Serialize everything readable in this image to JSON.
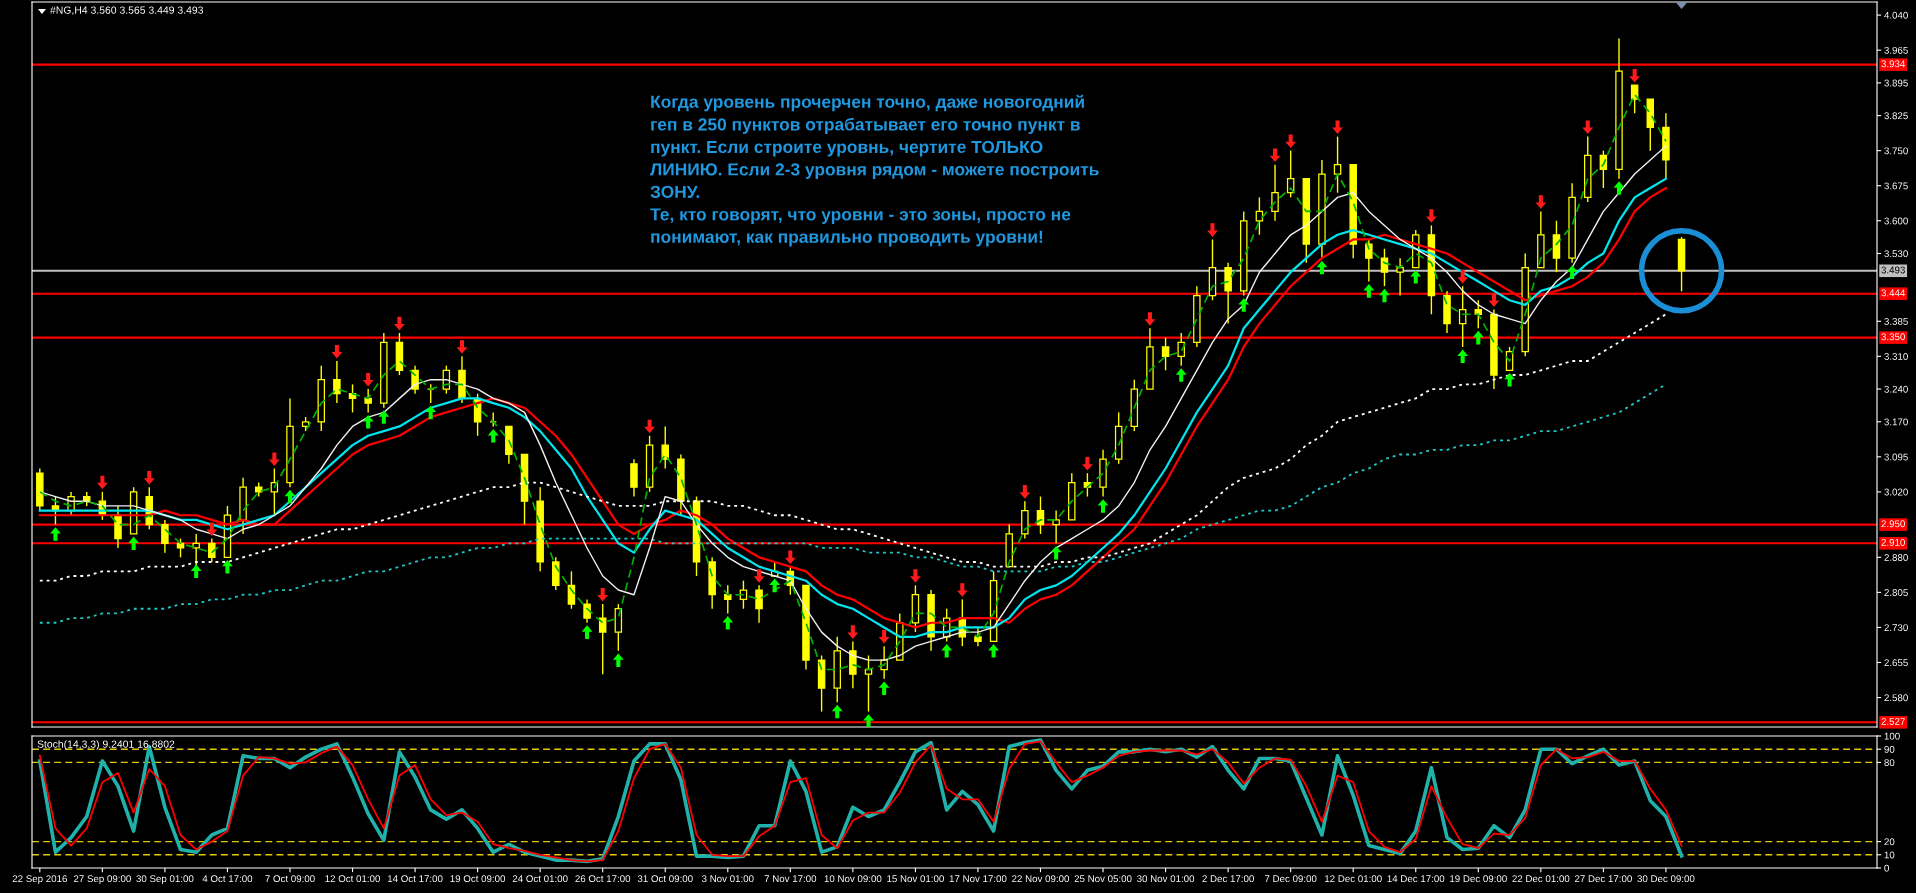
{
  "chart_data": [
    {
      "type": "candlestick",
      "title": "#NG,H4 3.560 3.565 3.449 3.493",
      "color": "#ffff00",
      "categories": [
        null,
        null,
        null,
        null,
        null,
        null,
        null,
        null,
        null,
        null,
        null,
        null,
        null,
        null,
        null,
        null,
        null,
        null,
        null,
        null,
        null,
        null,
        null,
        null,
        null,
        null,
        null,
        null,
        null,
        null,
        null,
        null,
        null,
        null,
        null,
        null,
        null,
        null,
        null,
        null,
        null,
        null,
        null,
        null,
        null,
        null,
        null,
        null,
        null,
        null,
        null,
        null,
        null,
        null,
        null,
        null,
        null,
        null,
        null,
        null,
        null,
        null,
        null,
        null,
        null,
        null,
        null,
        null,
        null,
        null,
        null,
        null,
        null,
        null,
        null,
        null,
        null,
        null,
        null,
        null,
        null,
        null,
        null,
        null,
        null,
        null,
        null,
        null,
        null,
        null,
        null,
        null,
        null,
        null,
        null,
        null,
        null,
        null,
        null,
        null,
        null,
        null,
        null,
        null,
        null,
        null
      ],
      "ohlc": [
        [
          3.06,
          3.07,
          2.98,
          2.99
        ],
        [
          2.99,
          3.01,
          2.95,
          2.98
        ],
        [
          2.98,
          3.02,
          2.97,
          3.01
        ],
        [
          3.01,
          3.02,
          2.99,
          3.0
        ],
        [
          3.0,
          3.02,
          2.96,
          2.97
        ],
        [
          2.97,
          2.99,
          2.9,
          2.92
        ],
        [
          2.93,
          3.03,
          2.93,
          3.02
        ],
        [
          3.01,
          3.03,
          2.94,
          2.95
        ],
        [
          2.95,
          2.96,
          2.89,
          2.91
        ],
        [
          2.91,
          2.92,
          2.88,
          2.9
        ],
        [
          2.9,
          2.93,
          2.86,
          2.91
        ],
        [
          2.91,
          2.92,
          2.87,
          2.88
        ],
        [
          2.88,
          2.99,
          2.88,
          2.97
        ],
        [
          2.96,
          3.05,
          2.93,
          3.03
        ],
        [
          3.03,
          3.04,
          3.01,
          3.02
        ],
        [
          3.02,
          3.07,
          2.97,
          3.04
        ],
        [
          3.04,
          3.22,
          3.03,
          3.16
        ],
        [
          3.16,
          3.18,
          3.15,
          3.17
        ],
        [
          3.17,
          3.29,
          3.15,
          3.26
        ],
        [
          3.26,
          3.3,
          3.21,
          3.23
        ],
        [
          3.23,
          3.25,
          3.19,
          3.22
        ],
        [
          3.22,
          3.24,
          3.19,
          3.21
        ],
        [
          3.21,
          3.36,
          3.2,
          3.34
        ],
        [
          3.34,
          3.36,
          3.27,
          3.28
        ],
        [
          3.28,
          3.29,
          3.23,
          3.24
        ],
        [
          3.24,
          3.25,
          3.21,
          3.24
        ],
        [
          3.24,
          3.29,
          3.23,
          3.28
        ],
        [
          3.28,
          3.31,
          3.21,
          3.22
        ],
        [
          3.22,
          3.23,
          3.14,
          3.17
        ],
        [
          3.17,
          3.19,
          3.16,
          3.17
        ],
        [
          3.16,
          3.16,
          3.08,
          3.1
        ],
        [
          3.1,
          3.1,
          2.95,
          3.0
        ],
        [
          3.0,
          3.03,
          2.85,
          2.87
        ],
        [
          2.87,
          2.88,
          2.81,
          2.82
        ],
        [
          2.82,
          2.85,
          2.77,
          2.78
        ],
        [
          2.78,
          2.79,
          2.74,
          2.75
        ],
        [
          2.75,
          2.78,
          2.63,
          2.72
        ],
        [
          2.72,
          2.78,
          2.68,
          2.77
        ],
        [
          3.08,
          3.09,
          3.01,
          3.03
        ],
        [
          3.03,
          3.14,
          3.02,
          3.12
        ],
        [
          3.12,
          3.16,
          3.07,
          3.09
        ],
        [
          3.09,
          3.1,
          2.97,
          3.0
        ],
        [
          3.0,
          3.01,
          2.84,
          2.87
        ],
        [
          2.87,
          2.88,
          2.77,
          2.8
        ],
        [
          2.8,
          2.82,
          2.76,
          2.79
        ],
        [
          2.79,
          2.83,
          2.77,
          2.81
        ],
        [
          2.81,
          2.82,
          2.74,
          2.77
        ],
        [
          2.84,
          2.87,
          2.84,
          2.85
        ],
        [
          2.85,
          2.86,
          2.8,
          2.82
        ],
        [
          2.82,
          2.82,
          2.64,
          2.66
        ],
        [
          2.66,
          2.67,
          2.55,
          2.6
        ],
        [
          2.6,
          2.71,
          2.57,
          2.68
        ],
        [
          2.68,
          2.7,
          2.6,
          2.63
        ],
        [
          2.63,
          2.67,
          2.55,
          2.64
        ],
        [
          2.64,
          2.69,
          2.62,
          2.66
        ],
        [
          2.66,
          2.76,
          2.66,
          2.74
        ],
        [
          2.74,
          2.82,
          2.72,
          2.8
        ],
        [
          2.8,
          2.81,
          2.68,
          2.71
        ],
        [
          2.71,
          2.77,
          2.7,
          2.75
        ],
        [
          2.75,
          2.79,
          2.69,
          2.71
        ],
        [
          2.71,
          2.73,
          2.69,
          2.7
        ],
        [
          2.7,
          2.85,
          2.7,
          2.83
        ],
        [
          2.86,
          2.95,
          2.86,
          2.93
        ],
        [
          2.93,
          3.0,
          2.92,
          2.98
        ],
        [
          2.98,
          3.01,
          2.93,
          2.95
        ],
        [
          2.95,
          2.98,
          2.91,
          2.96
        ],
        [
          2.96,
          3.06,
          2.96,
          3.04
        ],
        [
          3.04,
          3.06,
          3.01,
          3.03
        ],
        [
          3.03,
          3.11,
          3.01,
          3.09
        ],
        [
          3.09,
          3.19,
          3.08,
          3.16
        ],
        [
          3.16,
          3.26,
          3.15,
          3.24
        ],
        [
          3.24,
          3.37,
          3.24,
          3.33
        ],
        [
          3.33,
          3.35,
          3.28,
          3.31
        ],
        [
          3.31,
          3.36,
          3.29,
          3.34
        ],
        [
          3.34,
          3.46,
          3.33,
          3.44
        ],
        [
          3.44,
          3.56,
          3.43,
          3.5
        ],
        [
          3.5,
          3.51,
          3.38,
          3.45
        ],
        [
          3.45,
          3.62,
          3.44,
          3.6
        ],
        [
          3.6,
          3.65,
          3.57,
          3.62
        ],
        [
          3.62,
          3.72,
          3.6,
          3.66
        ],
        [
          3.66,
          3.75,
          3.65,
          3.69
        ],
        [
          3.69,
          3.69,
          3.51,
          3.55
        ],
        [
          3.55,
          3.73,
          3.52,
          3.7
        ],
        [
          3.7,
          3.78,
          3.66,
          3.72
        ],
        [
          3.72,
          3.72,
          3.52,
          3.55
        ],
        [
          3.55,
          3.56,
          3.47,
          3.52
        ],
        [
          3.52,
          3.54,
          3.46,
          3.49
        ],
        [
          3.49,
          3.52,
          3.44,
          3.5
        ],
        [
          3.5,
          3.58,
          3.5,
          3.57
        ],
        [
          3.57,
          3.59,
          3.4,
          3.44
        ],
        [
          3.44,
          3.45,
          3.36,
          3.38
        ],
        [
          3.38,
          3.46,
          3.33,
          3.41
        ],
        [
          3.41,
          3.43,
          3.37,
          3.4
        ],
        [
          3.4,
          3.41,
          3.24,
          3.27
        ],
        [
          3.28,
          3.33,
          3.28,
          3.32
        ],
        [
          3.32,
          3.53,
          3.31,
          3.5
        ],
        [
          3.5,
          3.62,
          3.5,
          3.57
        ],
        [
          3.57,
          3.6,
          3.49,
          3.52
        ],
        [
          3.52,
          3.68,
          3.51,
          3.65
        ],
        [
          3.65,
          3.78,
          3.64,
          3.74
        ],
        [
          3.74,
          3.75,
          3.67,
          3.71
        ],
        [
          3.71,
          3.99,
          3.69,
          3.92
        ],
        [
          3.89,
          3.89,
          3.83,
          3.86
        ],
        [
          3.86,
          3.86,
          3.75,
          3.8
        ],
        [
          3.8,
          3.83,
          3.69,
          3.73
        ],
        [
          3.56,
          3.565,
          3.449,
          3.493
        ]
      ],
      "series": [
        {
          "type": "line",
          "color": "#ff0000",
          "values": [
            2.97,
            2.97,
            2.97,
            2.97,
            2.97,
            2.97,
            2.97,
            2.97,
            2.98,
            2.97,
            2.97,
            2.96,
            2.95,
            2.96,
            2.95,
            2.95,
            2.98,
            3.01,
            3.04,
            3.07,
            3.1,
            3.12,
            3.13,
            3.14,
            3.16,
            3.18,
            3.19,
            3.2,
            3.21,
            3.22,
            3.21,
            3.2,
            3.17,
            3.14,
            3.1,
            3.05,
            3.0,
            2.95,
            2.93,
            2.95,
            2.96,
            2.98,
            2.97,
            2.95,
            2.92,
            2.9,
            2.88,
            2.87,
            2.86,
            2.85,
            2.82,
            2.8,
            2.79,
            2.77,
            2.75,
            2.74,
            2.73,
            2.74,
            2.74,
            2.75,
            2.75,
            2.75,
            2.74,
            2.77,
            2.79,
            2.8,
            2.82,
            2.85,
            2.88,
            2.91,
            2.94,
            2.99,
            3.04,
            3.1,
            3.16,
            3.21,
            3.26,
            3.33,
            3.38,
            3.42,
            3.46,
            3.49,
            3.52,
            3.54,
            3.56,
            3.56,
            3.57,
            3.56,
            3.55,
            3.54,
            3.53,
            3.51,
            3.49,
            3.47,
            3.45,
            3.43,
            3.44,
            3.45,
            3.46,
            3.48,
            3.51,
            3.56,
            3.62,
            3.65,
            3.67,
            null
          ]
        },
        {
          "type": "line",
          "color": "#00e5ee",
          "values": [
            2.98,
            2.98,
            2.98,
            2.98,
            2.98,
            2.98,
            2.98,
            2.98,
            2.97,
            2.96,
            2.96,
            2.95,
            2.94,
            2.95,
            2.96,
            2.97,
            3.0,
            3.03,
            3.06,
            3.09,
            3.12,
            3.14,
            3.15,
            3.16,
            3.18,
            3.2,
            3.21,
            3.22,
            3.22,
            3.21,
            3.2,
            3.18,
            3.15,
            3.11,
            3.07,
            3.01,
            2.96,
            2.91,
            2.89,
            2.94,
            2.98,
            2.97,
            2.96,
            2.93,
            2.9,
            2.88,
            2.86,
            2.85,
            2.84,
            2.83,
            2.8,
            2.78,
            2.77,
            2.75,
            2.73,
            2.71,
            2.71,
            2.72,
            2.72,
            2.73,
            2.73,
            2.73,
            2.75,
            2.79,
            2.81,
            2.82,
            2.84,
            2.87,
            2.9,
            2.93,
            2.97,
            3.02,
            3.07,
            3.13,
            3.19,
            3.24,
            3.29,
            3.37,
            3.41,
            3.45,
            3.49,
            3.52,
            3.55,
            3.57,
            3.58,
            3.57,
            3.56,
            3.55,
            3.54,
            3.53,
            3.51,
            3.49,
            3.47,
            3.45,
            3.43,
            3.42,
            3.45,
            3.46,
            3.48,
            3.51,
            3.53,
            3.6,
            3.65,
            3.67,
            3.69,
            null
          ]
        },
        {
          "type": "line",
          "color": "#ffffff",
          "line_style": "dotted",
          "values": [
            2.83,
            2.83,
            2.84,
            2.84,
            2.85,
            2.85,
            2.85,
            2.86,
            2.86,
            2.86,
            2.87,
            2.87,
            2.87,
            2.88,
            2.89,
            2.9,
            2.91,
            2.92,
            2.93,
            2.94,
            2.94,
            2.95,
            2.96,
            2.97,
            2.98,
            2.99,
            3.0,
            3.01,
            3.02,
            3.03,
            3.03,
            3.04,
            3.04,
            3.03,
            3.02,
            3.01,
            3.0,
            2.99,
            2.99,
            2.99,
            3.0,
            3.0,
            3.0,
            3.0,
            2.99,
            2.99,
            2.98,
            2.97,
            2.97,
            2.96,
            2.95,
            2.94,
            2.94,
            2.93,
            2.92,
            2.91,
            2.9,
            2.89,
            2.88,
            2.87,
            2.87,
            2.86,
            2.86,
            2.86,
            2.86,
            2.87,
            2.87,
            2.88,
            2.88,
            2.89,
            2.9,
            2.91,
            2.93,
            2.95,
            2.97,
            3.0,
            3.03,
            3.05,
            3.06,
            3.07,
            3.09,
            3.12,
            3.14,
            3.17,
            3.18,
            3.19,
            3.2,
            3.21,
            3.22,
            3.24,
            3.24,
            3.25,
            3.25,
            3.26,
            3.27,
            3.27,
            3.28,
            3.29,
            3.3,
            3.3,
            3.32,
            3.34,
            3.36,
            3.38,
            3.4,
            null
          ]
        },
        {
          "type": "line",
          "color": "#20c8c8",
          "line_style": "dotted",
          "values": [
            2.74,
            2.74,
            2.75,
            2.75,
            2.76,
            2.76,
            2.77,
            2.77,
            2.77,
            2.78,
            2.78,
            2.79,
            2.79,
            2.8,
            2.8,
            2.81,
            2.81,
            2.82,
            2.83,
            2.83,
            2.84,
            2.85,
            2.85,
            2.86,
            2.87,
            2.88,
            2.88,
            2.89,
            2.9,
            2.9,
            2.91,
            2.91,
            2.92,
            2.92,
            2.92,
            2.92,
            2.92,
            2.92,
            2.92,
            2.92,
            2.91,
            2.91,
            2.91,
            2.91,
            2.91,
            2.91,
            2.91,
            2.91,
            2.91,
            2.91,
            2.9,
            2.9,
            2.9,
            2.89,
            2.89,
            2.89,
            2.88,
            2.88,
            2.87,
            2.86,
            2.86,
            2.85,
            2.85,
            2.85,
            2.85,
            2.86,
            2.86,
            2.87,
            2.87,
            2.88,
            2.89,
            2.9,
            2.91,
            2.92,
            2.94,
            2.95,
            2.96,
            2.97,
            2.98,
            2.98,
            2.99,
            3.01,
            3.03,
            3.04,
            3.06,
            3.07,
            3.09,
            3.1,
            3.1,
            3.11,
            3.11,
            3.12,
            3.12,
            3.13,
            3.13,
            3.14,
            3.15,
            3.15,
            3.16,
            3.17,
            3.18,
            3.19,
            3.21,
            3.23,
            3.25,
            null
          ]
        },
        {
          "type": "line",
          "color": "#f0f0f0",
          "values": [
            3.02,
            3.01,
            3.0,
            3.0,
            2.99,
            2.99,
            2.99,
            2.98,
            2.97,
            2.96,
            2.94,
            2.93,
            2.92,
            2.94,
            2.95,
            2.97,
            2.99,
            3.03,
            3.07,
            3.12,
            3.16,
            3.18,
            3.19,
            3.22,
            3.25,
            3.26,
            3.26,
            3.25,
            3.24,
            3.22,
            3.21,
            3.19,
            3.12,
            3.04,
            2.97,
            2.9,
            2.84,
            2.81,
            2.8,
            2.9,
            3.01,
            3.0,
            2.95,
            2.91,
            2.88,
            2.86,
            2.85,
            2.84,
            2.83,
            2.77,
            2.72,
            2.69,
            2.67,
            2.66,
            2.66,
            2.67,
            2.69,
            2.7,
            2.71,
            2.72,
            2.72,
            2.73,
            2.78,
            2.83,
            2.87,
            2.9,
            2.92,
            2.94,
            2.96,
            2.99,
            3.04,
            3.11,
            3.16,
            3.22,
            3.28,
            3.34,
            3.39,
            3.42,
            3.49,
            3.53,
            3.57,
            3.59,
            3.62,
            3.65,
            3.66,
            3.62,
            3.59,
            3.56,
            3.54,
            3.52,
            3.49,
            3.45,
            3.42,
            3.4,
            3.39,
            3.38,
            3.43,
            3.47,
            3.5,
            3.56,
            3.62,
            3.66,
            3.7,
            3.73,
            3.76,
            null
          ]
        },
        {
          "type": "line",
          "color": "#00b400",
          "line_style": "dashed",
          "values": [
            3.02,
            3.0,
            2.99,
            3.0,
            2.99,
            2.95,
            2.95,
            2.97,
            2.94,
            2.91,
            2.9,
            2.89,
            2.92,
            2.98,
            3.02,
            3.03,
            3.09,
            3.15,
            3.21,
            3.24,
            3.23,
            3.22,
            3.27,
            3.3,
            3.27,
            3.24,
            3.25,
            3.25,
            3.2,
            3.17,
            3.13,
            3.05,
            2.95,
            2.86,
            2.81,
            2.77,
            2.74,
            2.75,
            2.88,
            3.05,
            3.1,
            3.05,
            2.95,
            2.84,
            2.8,
            2.8,
            2.79,
            2.81,
            2.83,
            2.74,
            2.64,
            2.64,
            2.65,
            2.64,
            2.65,
            2.7,
            2.76,
            2.76,
            2.73,
            2.73,
            2.71,
            2.76,
            2.87,
            2.94,
            2.96,
            2.96,
            3.0,
            3.03,
            3.06,
            3.12,
            3.2,
            3.28,
            3.31,
            3.32,
            3.39,
            3.46,
            3.47,
            3.52,
            3.6,
            3.64,
            3.67,
            3.62,
            3.62,
            3.7,
            3.64,
            3.54,
            3.51,
            3.5,
            3.53,
            3.51,
            3.42,
            3.4,
            3.4,
            3.34,
            3.3,
            3.4,
            3.52,
            3.55,
            3.59,
            3.69,
            3.72,
            3.8,
            3.87,
            3.83,
            3.77,
            null
          ]
        },
        {
          "type": "scatter",
          "color": "#ff1a1a",
          "marker": "triangle_down",
          "values": [
            null,
            null,
            null,
            null,
            3.04,
            null,
            null,
            3.05,
            null,
            null,
            null,
            2.94,
            null,
            null,
            null,
            3.09,
            null,
            null,
            null,
            3.32,
            null,
            3.26,
            null,
            3.38,
            null,
            null,
            null,
            3.33,
            null,
            null,
            null,
            null,
            null,
            null,
            null,
            null,
            2.8,
            null,
            null,
            3.16,
            null,
            null,
            null,
            null,
            null,
            null,
            2.84,
            null,
            2.88,
            null,
            null,
            null,
            2.72,
            null,
            2.71,
            null,
            2.84,
            null,
            null,
            2.81,
            null,
            null,
            null,
            3.02,
            null,
            null,
            null,
            3.08,
            null,
            null,
            null,
            3.39,
            null,
            null,
            null,
            3.58,
            null,
            null,
            null,
            3.74,
            3.77,
            null,
            null,
            3.8,
            null,
            null,
            null,
            null,
            null,
            3.61,
            null,
            3.48,
            null,
            3.43,
            null,
            null,
            3.64,
            null,
            null,
            3.8,
            null,
            null,
            3.91,
            null,
            null,
            null
          ]
        },
        {
          "type": "scatter",
          "color": "#00ff00",
          "marker": "triangle",
          "values": [
            null,
            2.93,
            null,
            null,
            null,
            null,
            2.91,
            null,
            null,
            null,
            2.85,
            null,
            2.86,
            null,
            null,
            null,
            3.01,
            null,
            null,
            null,
            null,
            3.17,
            3.18,
            null,
            null,
            3.19,
            null,
            null,
            null,
            3.14,
            null,
            null,
            null,
            null,
            null,
            2.72,
            null,
            2.66,
            null,
            null,
            null,
            null,
            null,
            null,
            2.74,
            null,
            null,
            2.82,
            null,
            null,
            null,
            2.55,
            null,
            2.53,
            2.6,
            null,
            null,
            null,
            2.68,
            null,
            null,
            2.68,
            null,
            null,
            null,
            2.89,
            null,
            null,
            2.99,
            null,
            null,
            null,
            null,
            3.27,
            null,
            null,
            null,
            3.42,
            null,
            null,
            null,
            null,
            3.5,
            null,
            null,
            3.45,
            3.44,
            null,
            3.48,
            null,
            null,
            3.31,
            3.35,
            null,
            3.26,
            null,
            null,
            null,
            3.49,
            null,
            null,
            3.67,
            null,
            null,
            null,
            null
          ]
        }
      ],
      "ylim": [
        2.517,
        4.068
      ],
      "yticks": [
        {
          "value": 4.04,
          "label": "4.040"
        },
        {
          "value": 3.965,
          "label": "3.965"
        },
        {
          "value": 3.895,
          "label": "3.895"
        },
        {
          "value": 3.825,
          "label": "3.825"
        },
        {
          "value": 3.75,
          "label": "3.750"
        },
        {
          "value": 3.675,
          "label": "3.675"
        },
        {
          "value": 3.6,
          "label": "3.600"
        },
        {
          "value": 3.53,
          "label": "3.530"
        },
        {
          "value": 3.385,
          "label": "3.385"
        },
        {
          "value": 3.31,
          "label": "3.310"
        },
        {
          "value": 3.24,
          "label": "3.240"
        },
        {
          "value": 3.17,
          "label": "3.170"
        },
        {
          "value": 3.095,
          "label": "3.095"
        },
        {
          "value": 3.02,
          "label": "3.020"
        },
        {
          "value": 2.88,
          "label": "2.880"
        },
        {
          "value": 2.805,
          "label": "2.805"
        },
        {
          "value": 2.73,
          "label": "2.730"
        },
        {
          "value": 2.655,
          "label": "2.655"
        },
        {
          "value": 2.58,
          "label": "2.580"
        }
      ],
      "ref_lines": [
        {
          "axis": "y",
          "value": 3.934,
          "label": "3.934",
          "color": "#ff0000"
        },
        {
          "axis": "y",
          "value": 3.493,
          "label": "3.493",
          "color": "#c0c0c0"
        },
        {
          "axis": "y",
          "value": 3.444,
          "label": "3.444",
          "color": "#ff0000"
        },
        {
          "axis": "y",
          "value": 3.35,
          "label": "3.350",
          "color": "#ff0000"
        },
        {
          "axis": "y",
          "value": 2.95,
          "label": "2.950",
          "color": "#ff0000"
        },
        {
          "axis": "y",
          "value": 2.91,
          "label": "2.910",
          "color": "#ff0000"
        },
        {
          "axis": "y",
          "value": 2.527,
          "label": "2.527",
          "color": "#ff0000"
        }
      ],
      "annotations": [
        "Когда уровень прочерчен точно, даже новогодний\nгеп в 250 пунктов отрабатывает его точно пункт в\nпункт. Если строите уровнь, чертите ТОЛЬКО\nЛИНИЮ. Если 2-3 уровня рядом - можете построить\nЗОНУ.\nТе, кто говорят, что уровни - это зоны, просто не\nпонимают, как правильно проводить уровни!"
      ],
      "tick_labels": "y"
    },
    {
      "type": "line",
      "title": "Stoch(14,3,3) 9.2401 16.8802",
      "categories": [
        "22 Sep 2016",
        null,
        null,
        null,
        "27 Sep 09:00",
        null,
        null,
        null,
        "30 Sep 01:00",
        null,
        null,
        null,
        "4 Oct 17:00",
        null,
        null,
        null,
        "7 Oct 09:00",
        null,
        null,
        null,
        "12 Oct 01:00",
        null,
        null,
        null,
        "14 Oct 17:00",
        null,
        null,
        null,
        "19 Oct 09:00",
        null,
        null,
        null,
        "24 Oct 01:00",
        null,
        null,
        null,
        "26 Oct 17:00",
        null,
        null,
        null,
        "31 Oct 09:00",
        null,
        null,
        null,
        "3 Nov 01:00",
        null,
        null,
        null,
        "7 Nov 17:00",
        null,
        null,
        null,
        "10 Nov 09:00",
        null,
        null,
        null,
        "15 Nov 01:00",
        null,
        null,
        null,
        "17 Nov 17:00",
        null,
        null,
        null,
        "22 Nov 09:00",
        null,
        null,
        null,
        "25 Nov 05:00",
        null,
        null,
        null,
        "30 Nov 01:00",
        null,
        null,
        null,
        "2 Dec 17:00",
        null,
        null,
        null,
        "7 Dec 09:00",
        null,
        null,
        null,
        "12 Dec 01:00",
        null,
        null,
        null,
        "14 Dec 17:00",
        null,
        null,
        null,
        "19 Dec 09:00",
        null,
        null,
        null,
        "22 Dec 01:00",
        null,
        null,
        null,
        "27 Dec 17:00",
        null,
        null,
        null,
        "30 Dec 09:00",
        null
      ],
      "series": [
        {
          "color": "#20b2aa",
          "values": [
            81,
            12,
            23,
            39,
            81,
            62,
            28,
            92,
            46,
            14,
            12,
            25,
            30,
            85,
            83,
            83,
            76,
            84,
            90,
            94,
            69,
            41,
            21,
            88,
            69,
            44,
            37,
            44,
            30,
            12,
            18,
            12,
            9,
            6,
            6,
            5,
            7,
            39,
            81,
            94,
            94,
            67,
            9,
            9,
            8,
            9,
            32,
            32,
            81,
            58,
            12,
            16,
            46,
            39,
            44,
            65,
            88,
            95,
            44,
            58,
            48,
            28,
            92,
            95,
            97,
            74,
            60,
            74,
            77,
            88,
            88,
            90,
            88,
            90,
            84,
            92,
            74,
            60,
            83,
            83,
            81,
            53,
            25,
            85,
            55,
            17,
            14,
            11,
            28,
            76,
            23,
            14,
            15,
            32,
            23,
            44,
            90,
            90,
            79,
            85,
            90,
            78,
            81,
            51,
            39,
            9.2401
          ]
        },
        {
          "color": "#ff0000",
          "values": [
            85,
            30,
            17,
            30,
            65,
            72,
            42,
            75,
            62,
            25,
            14,
            20,
            28,
            70,
            84,
            83,
            79,
            80,
            87,
            92,
            78,
            52,
            30,
            70,
            78,
            52,
            40,
            42,
            35,
            18,
            15,
            13,
            10,
            8,
            6,
            5,
            6,
            28,
            68,
            90,
            94,
            76,
            25,
            10,
            9,
            9,
            24,
            32,
            65,
            68,
            25,
            15,
            36,
            42,
            42,
            57,
            80,
            93,
            60,
            52,
            52,
            35,
            75,
            94,
            96,
            80,
            65,
            70,
            76,
            85,
            88,
            89,
            89,
            89,
            86,
            90,
            80,
            64,
            76,
            83,
            82,
            62,
            35,
            70,
            65,
            28,
            16,
            12,
            22,
            62,
            38,
            18,
            15,
            26,
            25,
            38,
            78,
            90,
            83,
            84,
            88,
            81,
            81,
            60,
            44,
            16.8802
          ]
        }
      ],
      "ylim": [
        0,
        100
      ],
      "yticks": [
        100,
        90,
        80,
        20,
        10,
        0
      ],
      "ref_lines": [
        {
          "axis": "y",
          "value": 90,
          "color": "#e6c800",
          "line_style": "dashed"
        },
        {
          "axis": "y",
          "value": 80,
          "color": "#e6c800",
          "line_style": "dashed"
        },
        {
          "axis": "y",
          "value": 20,
          "color": "#e6c800",
          "line_style": "dashed"
        },
        {
          "axis": "y",
          "value": 10,
          "color": "#e6c800",
          "line_style": "dashed"
        }
      ]
    }
  ]
}
